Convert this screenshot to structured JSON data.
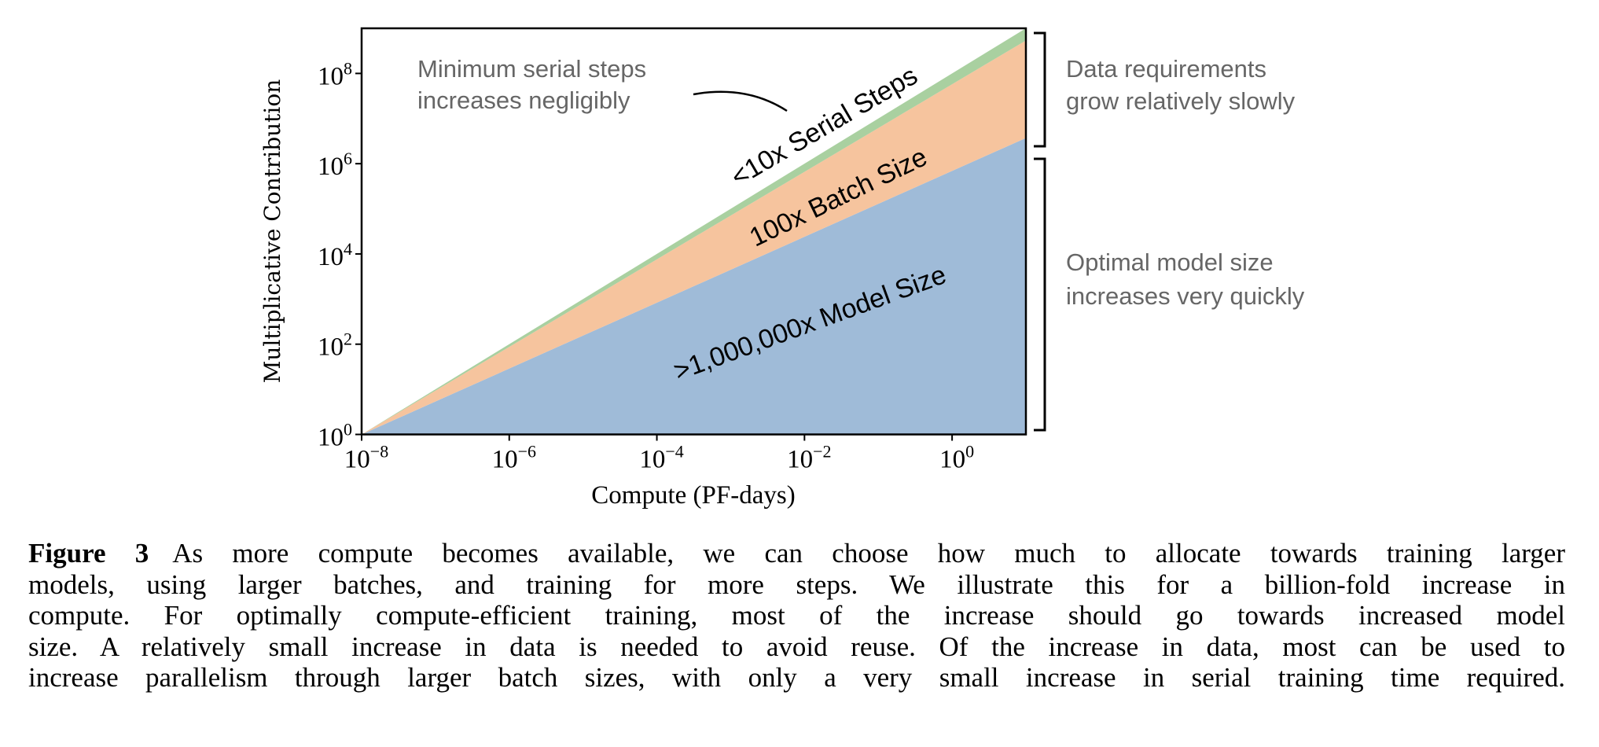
{
  "chart_data": {
    "type": "area",
    "stacked": true,
    "xscale": "log",
    "yscale": "log",
    "xlabel": "Compute (PF-days)",
    "ylabel": "Multiplicative Contribution",
    "xlim_log10": [
      -8,
      1
    ],
    "ylim_log10": [
      0,
      9
    ],
    "x_tick_exponents": [
      -8,
      -6,
      -4,
      -2,
      0
    ],
    "y_tick_exponents": [
      0,
      2,
      4,
      6,
      8
    ],
    "x_log10": [
      -8,
      1
    ],
    "series": [
      {
        "name": "Model Size",
        "label": ">1,000,000x Model Size",
        "exponent": 0.73,
        "cumulative_log10_top": [
          0,
          6.57
        ],
        "color": "#9fbbd8"
      },
      {
        "name": "Batch Size",
        "label": "100x Batch Size",
        "exponent": 0.24,
        "cumulative_log10_top": [
          0,
          8.73
        ],
        "color": "#f6c49e"
      },
      {
        "name": "Serial Steps",
        "label": "<10x Serial Steps",
        "exponent": 0.03,
        "cumulative_log10_top": [
          0,
          9.0
        ],
        "color": "#a9d0a0"
      }
    ],
    "annotations": {
      "serial_note": [
        "Minimum serial steps",
        "increases negligibly"
      ],
      "data_note": [
        "Data requirements",
        "grow relatively slowly"
      ],
      "model_note": [
        "Optimal model size",
        "increases very quickly"
      ]
    }
  },
  "caption": {
    "label": "Figure 3",
    "lines": [
      "As more compute becomes available, we can choose how much to allocate towards training larger",
      "models, using larger batches, and training for more steps.  We illustrate this for a billion-fold increase in",
      "compute. For optimally compute-efficient training, most of the increase should go towards increased model",
      "size. A relatively small increase in data is needed to avoid reuse. Of the increase in data, most can be used to",
      "increase parallelism through larger batch sizes, with only a very small increase in serial training time required."
    ]
  }
}
